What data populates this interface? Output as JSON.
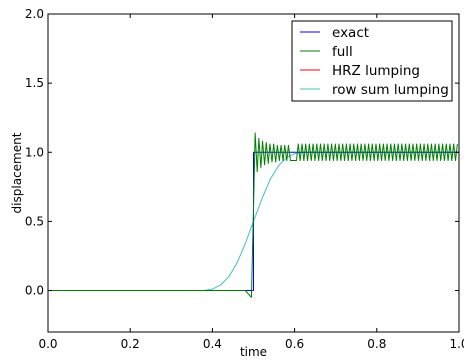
{
  "chart_data": {
    "type": "line",
    "xlabel": "time",
    "ylabel": "displacement",
    "xlim": [
      0.0,
      1.0
    ],
    "ylim": [
      -0.3,
      2.0
    ],
    "xticks": [
      0.0,
      0.2,
      0.4,
      0.6,
      0.8,
      1.0
    ],
    "xtick_labels": [
      "0.0",
      "0.2",
      "0.4",
      "0.6",
      "0.8",
      "1.0"
    ],
    "yticks": [
      0.0,
      0.5,
      1.0,
      1.5,
      2.0
    ],
    "ytick_labels": [
      "0.0",
      "0.5",
      "1.0",
      "1.5",
      "2.0"
    ],
    "grid": false,
    "legend_position": "top-right",
    "step_time": 0.5,
    "series": [
      {
        "name": "exact",
        "color": "#0000ff",
        "x": [
          0.0,
          0.5,
          0.5,
          1.0
        ],
        "y": [
          0.0,
          0.0,
          1.0,
          1.0
        ]
      },
      {
        "name": "full",
        "color": "#008000",
        "x": [
          0.0,
          0.48,
          0.495,
          0.5,
          0.504,
          0.509,
          0.513,
          0.518,
          0.522,
          0.527,
          0.531,
          0.536,
          0.54,
          0.545,
          0.549,
          0.554,
          0.558,
          0.563,
          0.567,
          0.572,
          0.576,
          0.581,
          0.585,
          0.59,
          0.6,
          1.0
        ],
        "y": [
          0.0,
          0.0,
          -0.05,
          0.6,
          1.14,
          0.86,
          1.1,
          0.89,
          1.08,
          0.91,
          1.07,
          0.92,
          1.06,
          0.93,
          1.06,
          0.93,
          1.05,
          0.94,
          1.05,
          0.94,
          1.05,
          0.94,
          1.05,
          0.94,
          1.05,
          1.05
        ],
        "oscillation_band": [
          0.94,
          1.06
        ]
      },
      {
        "name": "HRZ lumping",
        "color": "#ff0000",
        "x": [],
        "y": []
      },
      {
        "name": "row sum lumping",
        "color": "#40c0c0",
        "x": [
          0.0,
          0.38,
          0.4,
          0.42,
          0.44,
          0.46,
          0.48,
          0.5,
          0.52,
          0.54,
          0.56,
          0.58,
          0.6,
          0.62,
          0.65,
          0.7,
          1.0
        ],
        "y": [
          0.0,
          0.0,
          0.01,
          0.04,
          0.1,
          0.2,
          0.34,
          0.5,
          0.66,
          0.8,
          0.9,
          0.96,
          0.99,
          1.0,
          1.0,
          1.0,
          1.0
        ]
      }
    ]
  }
}
